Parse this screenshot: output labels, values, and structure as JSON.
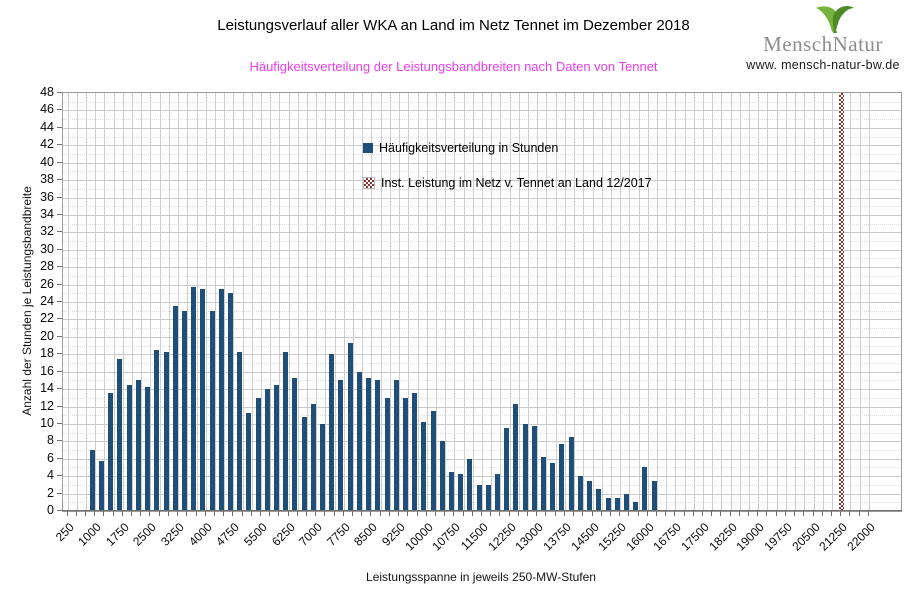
{
  "header": {
    "title": "Leistungsverlauf aller WKA an Land im Netz Tennet im Dezember 2018",
    "subtitle": "Häufigkeitsverteilung der Leistungsbandbreiten nach Daten von Tennet",
    "subtitle_color": "#e93ee9"
  },
  "logo": {
    "brand": "MenschNatur",
    "url": "www. mensch-natur-bw.de",
    "leaf_colors": [
      "#76b23c",
      "#4e8a27"
    ]
  },
  "chart_data": {
    "type": "bar",
    "title": "Leistungsverlauf aller WKA an Land im Netz Tennet im Dezember 2018",
    "xlabel": "Leistungsspanne in jeweils 250-MW-Stufen",
    "ylabel": "Anzahl der Stunden je Leistungsbandbreite",
    "ylim": [
      0,
      48
    ],
    "y_tick_step": 2,
    "grid": true,
    "legend_position": "inside-top-center",
    "x_axis": {
      "first_mw": 250,
      "last_mw": 22000,
      "step_mw": 250,
      "labeled_every_mw": 750
    },
    "x_tick_labels": [
      "250",
      "1000",
      "1750",
      "2500",
      "3250",
      "4000",
      "4750",
      "5500",
      "6250",
      "7000",
      "7750",
      "8500",
      "9250",
      "10000",
      "10750",
      "11500",
      "12250",
      "13000",
      "13750",
      "14500",
      "15250",
      "16000",
      "16750",
      "17500",
      "18250",
      "19000",
      "19750",
      "20500",
      "21250",
      "22000"
    ],
    "series": [
      {
        "name": "Häufigkeitsverteilung in Stunden",
        "color": "#1f4e79",
        "start_mw": 1000,
        "step_mw": 250,
        "values": [
          7,
          5.75,
          13.5,
          17.5,
          14.5,
          15,
          14.25,
          18.5,
          18.25,
          23.5,
          23,
          25.75,
          25.5,
          23,
          25.5,
          25,
          18.25,
          11.25,
          13,
          14,
          14.5,
          18.25,
          15.25,
          10.75,
          12.25,
          10,
          18,
          15,
          19.25,
          16,
          15.25,
          15,
          13,
          15,
          13,
          13.5,
          10.25,
          11.5,
          8,
          4.5,
          4.25,
          6,
          3,
          3,
          4.25,
          9.5,
          12.25,
          10,
          9.75,
          6.25,
          5.5,
          7.75,
          8.5,
          4,
          3.5,
          2.5,
          1.5,
          1.5,
          2,
          1,
          5,
          3.5
        ]
      },
      {
        "name": "Inst. Leistung im Netz v. Tennet an Land 12/2017",
        "style": "hatched",
        "color": "#8b3434",
        "marker_mw": 21250,
        "full_height": true
      }
    ]
  }
}
